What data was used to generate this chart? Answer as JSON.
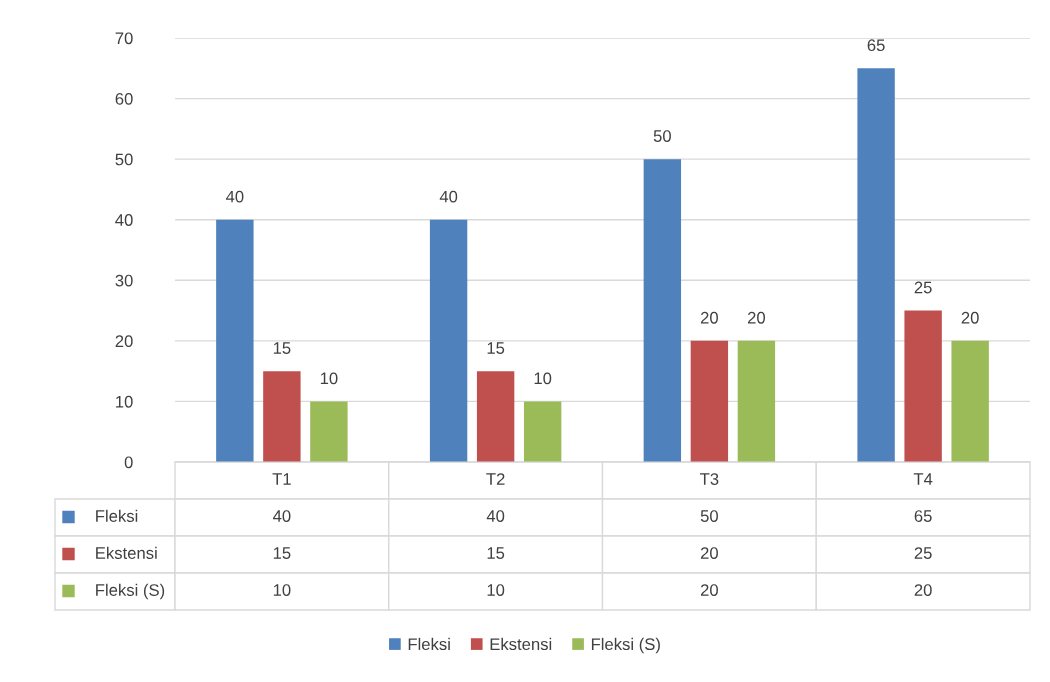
{
  "chart_data": {
    "type": "bar",
    "categories": [
      "T1",
      "T2",
      "T3",
      "T4"
    ],
    "series": [
      {
        "name": "Fleksi",
        "color": "#4f81bd",
        "values": [
          40,
          40,
          50,
          65
        ]
      },
      {
        "name": "Ekstensi",
        "color": "#c0504d",
        "values": [
          15,
          15,
          20,
          25
        ]
      },
      {
        "name": "Fleksi (S)",
        "color": "#9bbb59",
        "values": [
          10,
          10,
          20,
          20
        ]
      }
    ],
    "annotations": [
      "40",
      "40",
      "50",
      "65",
      "15",
      "15",
      "20",
      "25",
      "10",
      "10",
      "20",
      "20"
    ],
    "ylim": [
      0,
      70
    ],
    "yticks": [
      0,
      10,
      20,
      30,
      40,
      50,
      60,
      70
    ],
    "grid": "y",
    "data_labels": true,
    "legend": "bottom"
  }
}
